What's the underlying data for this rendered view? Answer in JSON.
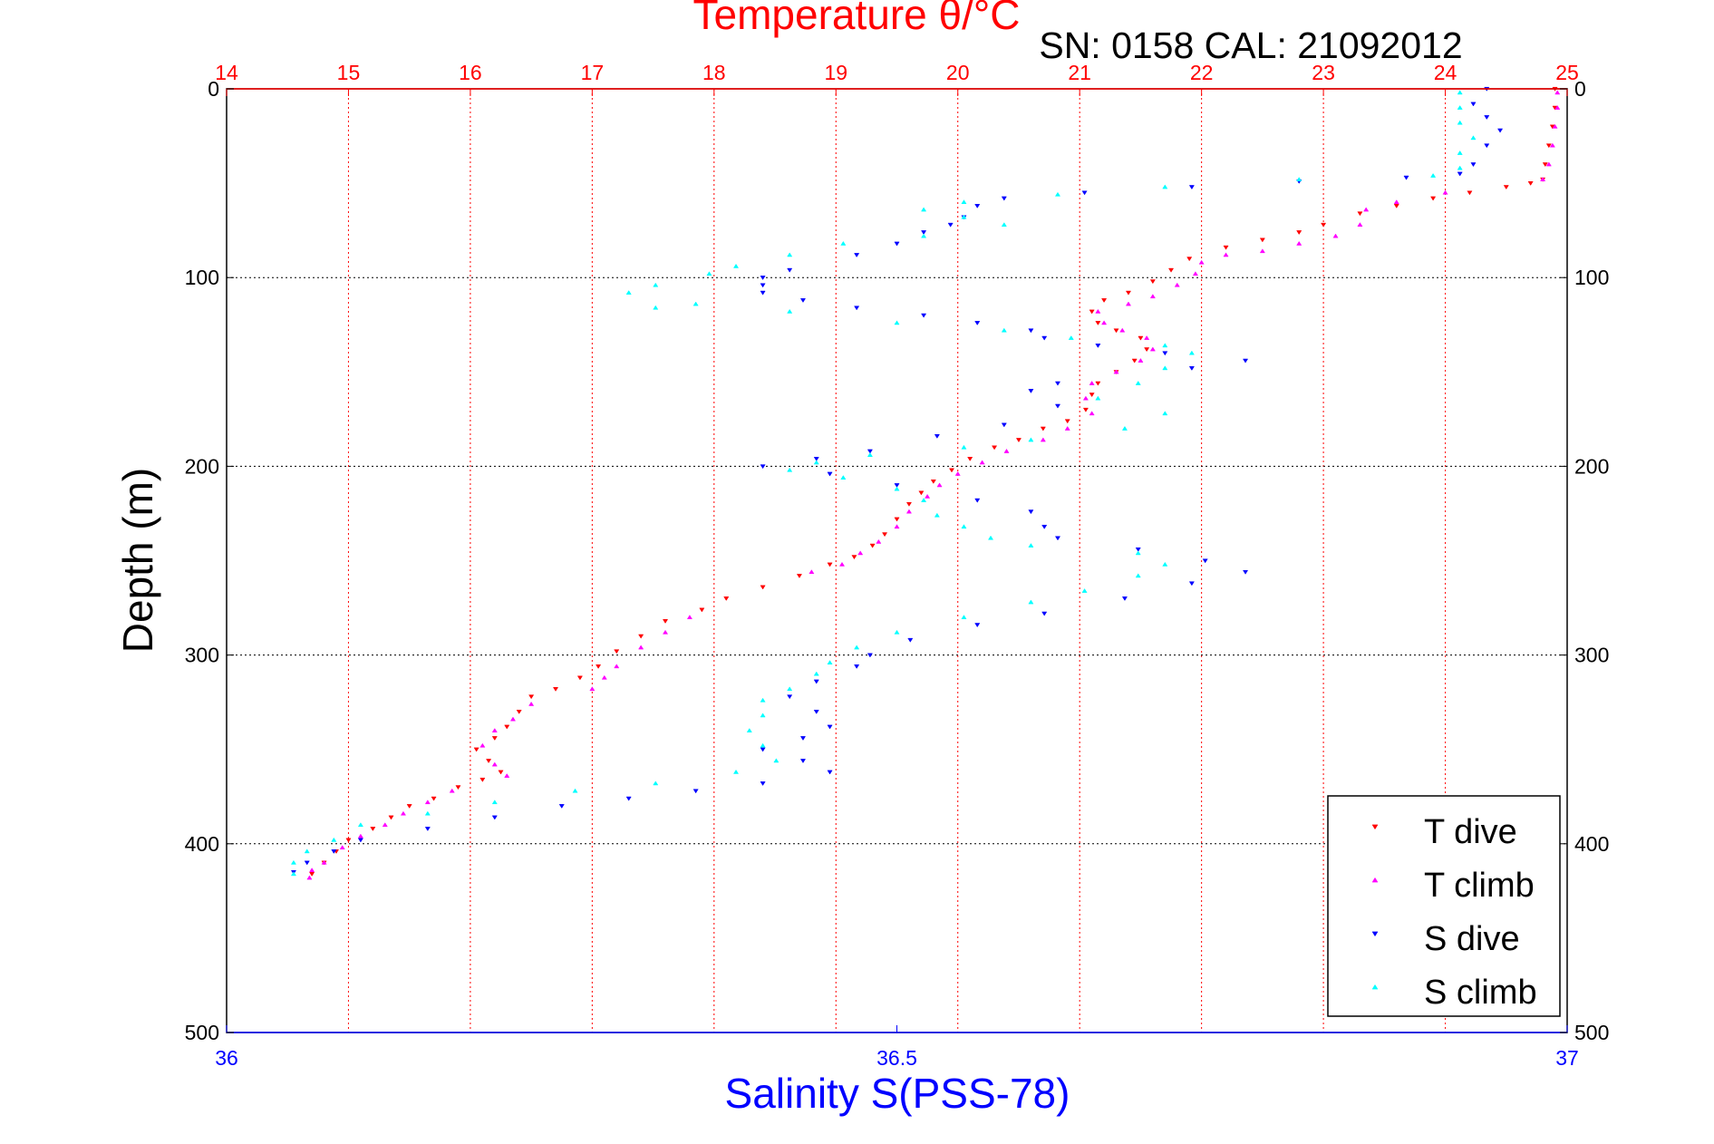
{
  "chart_data": {
    "type": "scatter",
    "title": "Temperature θ/°C",
    "subtitle": "SN: 0158  CAL: 21092012",
    "xlabel": "Salinity S(PSS-78)",
    "ylabel": "Depth (m)",
    "top_axis": {
      "range": [
        14,
        25
      ],
      "ticks": [
        "14",
        "15",
        "16",
        "17",
        "18",
        "19",
        "20",
        "21",
        "22",
        "23",
        "24",
        "25"
      ]
    },
    "bottom_axis": {
      "range": [
        36,
        37
      ],
      "ticks": [
        "36",
        "36.5",
        "37"
      ]
    },
    "y_axis": {
      "range": [
        0,
        500
      ],
      "reversed": true,
      "ticks": [
        "0",
        "100",
        "200",
        "300",
        "400",
        "500"
      ]
    },
    "grid": true,
    "legend_placement": "bottom-right",
    "colors": {
      "top_axis": "#ff0000",
      "bottom_axis": "#0000ff",
      "frame": "#000000"
    },
    "series": [
      {
        "name": "T dive",
        "axis": "top",
        "color": "#ff0000",
        "marker": "triangle-down",
        "points": [
          [
            24.9,
            0
          ],
          [
            24.9,
            10
          ],
          [
            24.88,
            20
          ],
          [
            24.85,
            30
          ],
          [
            24.82,
            40
          ],
          [
            24.8,
            48
          ],
          [
            24.7,
            50
          ],
          [
            24.5,
            52
          ],
          [
            24.2,
            55
          ],
          [
            23.9,
            58
          ],
          [
            23.6,
            62
          ],
          [
            23.3,
            66
          ],
          [
            23.0,
            72
          ],
          [
            22.8,
            76
          ],
          [
            22.5,
            80
          ],
          [
            22.2,
            84
          ],
          [
            21.9,
            90
          ],
          [
            21.75,
            96
          ],
          [
            21.6,
            102
          ],
          [
            21.4,
            108
          ],
          [
            21.2,
            112
          ],
          [
            21.1,
            118
          ],
          [
            21.15,
            124
          ],
          [
            21.3,
            128
          ],
          [
            21.5,
            132
          ],
          [
            21.55,
            138
          ],
          [
            21.45,
            144
          ],
          [
            21.3,
            150
          ],
          [
            21.15,
            156
          ],
          [
            21.1,
            162
          ],
          [
            21.05,
            170
          ],
          [
            20.9,
            176
          ],
          [
            20.7,
            180
          ],
          [
            20.5,
            186
          ],
          [
            20.3,
            190
          ],
          [
            20.1,
            196
          ],
          [
            19.95,
            202
          ],
          [
            19.8,
            208
          ],
          [
            19.7,
            214
          ],
          [
            19.6,
            220
          ],
          [
            19.5,
            228
          ],
          [
            19.4,
            236
          ],
          [
            19.3,
            242
          ],
          [
            19.15,
            248
          ],
          [
            18.95,
            252
          ],
          [
            18.7,
            258
          ],
          [
            18.4,
            264
          ],
          [
            18.1,
            270
          ],
          [
            17.9,
            276
          ],
          [
            17.6,
            282
          ],
          [
            17.4,
            290
          ],
          [
            17.2,
            298
          ],
          [
            17.05,
            306
          ],
          [
            16.9,
            312
          ],
          [
            16.7,
            318
          ],
          [
            16.5,
            322
          ],
          [
            16.4,
            330
          ],
          [
            16.3,
            338
          ],
          [
            16.2,
            344
          ],
          [
            16.05,
            350
          ],
          [
            16.15,
            356
          ],
          [
            16.25,
            362
          ],
          [
            16.1,
            366
          ],
          [
            15.9,
            370
          ],
          [
            15.7,
            376
          ],
          [
            15.5,
            380
          ],
          [
            15.35,
            386
          ],
          [
            15.2,
            392
          ],
          [
            15.0,
            398
          ],
          [
            14.9,
            404
          ],
          [
            14.8,
            410
          ],
          [
            14.7,
            416
          ]
        ]
      },
      {
        "name": "T climb",
        "axis": "top",
        "color": "#ff00ff",
        "marker": "triangle-up",
        "points": [
          [
            24.8,
            48
          ],
          [
            24.85,
            40
          ],
          [
            24.88,
            30
          ],
          [
            24.9,
            20
          ],
          [
            24.92,
            10
          ],
          [
            24.92,
            2
          ],
          [
            24.0,
            55
          ],
          [
            23.6,
            60
          ],
          [
            23.35,
            64
          ],
          [
            23.3,
            72
          ],
          [
            23.1,
            78
          ],
          [
            22.8,
            82
          ],
          [
            22.5,
            86
          ],
          [
            22.2,
            88
          ],
          [
            22.0,
            92
          ],
          [
            21.95,
            98
          ],
          [
            21.8,
            104
          ],
          [
            21.6,
            110
          ],
          [
            21.4,
            114
          ],
          [
            21.15,
            118
          ],
          [
            21.2,
            124
          ],
          [
            21.35,
            128
          ],
          [
            21.55,
            132
          ],
          [
            21.6,
            138
          ],
          [
            21.5,
            144
          ],
          [
            21.3,
            150
          ],
          [
            21.1,
            156
          ],
          [
            21.05,
            164
          ],
          [
            21.1,
            172
          ],
          [
            20.9,
            180
          ],
          [
            20.7,
            186
          ],
          [
            20.4,
            192
          ],
          [
            20.2,
            198
          ],
          [
            20.0,
            204
          ],
          [
            19.85,
            210
          ],
          [
            19.75,
            216
          ],
          [
            19.6,
            224
          ],
          [
            19.5,
            232
          ],
          [
            19.35,
            240
          ],
          [
            19.2,
            246
          ],
          [
            19.05,
            252
          ],
          [
            18.8,
            256
          ],
          [
            17.0,
            318
          ],
          [
            17.1,
            312
          ],
          [
            17.2,
            306
          ],
          [
            17.4,
            296
          ],
          [
            17.6,
            288
          ],
          [
            17.8,
            280
          ],
          [
            16.5,
            326
          ],
          [
            16.35,
            334
          ],
          [
            16.2,
            340
          ],
          [
            16.1,
            348
          ],
          [
            16.2,
            358
          ],
          [
            16.3,
            364
          ],
          [
            15.85,
            372
          ],
          [
            15.65,
            378
          ],
          [
            15.45,
            384
          ],
          [
            15.3,
            390
          ],
          [
            15.1,
            396
          ],
          [
            14.95,
            402
          ],
          [
            14.8,
            410
          ],
          [
            14.7,
            414
          ],
          [
            14.68,
            418
          ]
        ]
      },
      {
        "name": "S dive",
        "axis": "bottom",
        "color": "#0000ff",
        "marker": "triangle-down",
        "points": [
          [
            36.94,
            0
          ],
          [
            36.93,
            8
          ],
          [
            36.94,
            15
          ],
          [
            36.95,
            22
          ],
          [
            36.94,
            30
          ],
          [
            36.93,
            40
          ],
          [
            36.92,
            45
          ],
          [
            36.88,
            47
          ],
          [
            36.8,
            49
          ],
          [
            36.72,
            52
          ],
          [
            36.64,
            55
          ],
          [
            36.58,
            58
          ],
          [
            36.56,
            62
          ],
          [
            36.55,
            68
          ],
          [
            36.54,
            72
          ],
          [
            36.52,
            76
          ],
          [
            36.5,
            82
          ],
          [
            36.47,
            88
          ],
          [
            36.42,
            96
          ],
          [
            36.4,
            100
          ],
          [
            36.4,
            104
          ],
          [
            36.4,
            108
          ],
          [
            36.43,
            112
          ],
          [
            36.47,
            116
          ],
          [
            36.52,
            120
          ],
          [
            36.56,
            124
          ],
          [
            36.6,
            128
          ],
          [
            36.61,
            132
          ],
          [
            36.65,
            136
          ],
          [
            36.7,
            140
          ],
          [
            36.76,
            144
          ],
          [
            36.72,
            148
          ],
          [
            36.62,
            156
          ],
          [
            36.6,
            160
          ],
          [
            36.62,
            168
          ],
          [
            36.58,
            178
          ],
          [
            36.53,
            184
          ],
          [
            36.48,
            192
          ],
          [
            36.44,
            196
          ],
          [
            36.4,
            200
          ],
          [
            36.45,
            204
          ],
          [
            36.5,
            210
          ],
          [
            36.56,
            218
          ],
          [
            36.6,
            224
          ],
          [
            36.61,
            232
          ],
          [
            36.62,
            238
          ],
          [
            36.68,
            244
          ],
          [
            36.73,
            250
          ],
          [
            36.76,
            256
          ],
          [
            36.72,
            262
          ],
          [
            36.67,
            270
          ],
          [
            36.61,
            278
          ],
          [
            36.56,
            284
          ],
          [
            36.51,
            292
          ],
          [
            36.48,
            300
          ],
          [
            36.47,
            306
          ],
          [
            36.44,
            314
          ],
          [
            36.42,
            322
          ],
          [
            36.44,
            330
          ],
          [
            36.45,
            338
          ],
          [
            36.43,
            344
          ],
          [
            36.4,
            350
          ],
          [
            36.43,
            356
          ],
          [
            36.45,
            362
          ],
          [
            36.4,
            368
          ],
          [
            36.35,
            372
          ],
          [
            36.3,
            376
          ],
          [
            36.25,
            380
          ],
          [
            36.2,
            386
          ],
          [
            36.15,
            392
          ],
          [
            36.1,
            398
          ],
          [
            36.08,
            404
          ],
          [
            36.06,
            410
          ],
          [
            36.05,
            415
          ]
        ]
      },
      {
        "name": "S climb",
        "axis": "bottom",
        "color": "#00ffff",
        "marker": "triangle-up",
        "points": [
          [
            36.92,
            2
          ],
          [
            36.92,
            10
          ],
          [
            36.92,
            18
          ],
          [
            36.93,
            26
          ],
          [
            36.92,
            34
          ],
          [
            36.92,
            42
          ],
          [
            36.9,
            46
          ],
          [
            36.8,
            48
          ],
          [
            36.7,
            52
          ],
          [
            36.62,
            56
          ],
          [
            36.55,
            60
          ],
          [
            36.52,
            64
          ],
          [
            36.55,
            68
          ],
          [
            36.58,
            72
          ],
          [
            36.52,
            78
          ],
          [
            36.46,
            82
          ],
          [
            36.42,
            88
          ],
          [
            36.38,
            94
          ],
          [
            36.36,
            98
          ],
          [
            36.32,
            104
          ],
          [
            36.3,
            108
          ],
          [
            36.32,
            116
          ],
          [
            36.35,
            114
          ],
          [
            36.42,
            118
          ],
          [
            36.5,
            124
          ],
          [
            36.58,
            128
          ],
          [
            36.63,
            132
          ],
          [
            36.7,
            136
          ],
          [
            36.72,
            140
          ],
          [
            36.7,
            148
          ],
          [
            36.68,
            156
          ],
          [
            36.65,
            164
          ],
          [
            36.7,
            172
          ],
          [
            36.67,
            180
          ],
          [
            36.6,
            186
          ],
          [
            36.55,
            190
          ],
          [
            36.48,
            194
          ],
          [
            36.44,
            198
          ],
          [
            36.42,
            202
          ],
          [
            36.46,
            206
          ],
          [
            36.5,
            212
          ],
          [
            36.52,
            218
          ],
          [
            36.53,
            226
          ],
          [
            36.55,
            232
          ],
          [
            36.57,
            238
          ],
          [
            36.6,
            242
          ],
          [
            36.68,
            246
          ],
          [
            36.7,
            252
          ],
          [
            36.68,
            258
          ],
          [
            36.64,
            266
          ],
          [
            36.6,
            272
          ],
          [
            36.55,
            280
          ],
          [
            36.5,
            288
          ],
          [
            36.47,
            296
          ],
          [
            36.45,
            304
          ],
          [
            36.44,
            310
          ],
          [
            36.42,
            318
          ],
          [
            36.4,
            324
          ],
          [
            36.4,
            332
          ],
          [
            36.39,
            340
          ],
          [
            36.4,
            348
          ],
          [
            36.41,
            356
          ],
          [
            36.38,
            362
          ],
          [
            36.32,
            368
          ],
          [
            36.26,
            372
          ],
          [
            36.2,
            378
          ],
          [
            36.15,
            384
          ],
          [
            36.1,
            390
          ],
          [
            36.08,
            398
          ],
          [
            36.06,
            404
          ],
          [
            36.05,
            410
          ],
          [
            36.05,
            416
          ]
        ]
      }
    ]
  }
}
